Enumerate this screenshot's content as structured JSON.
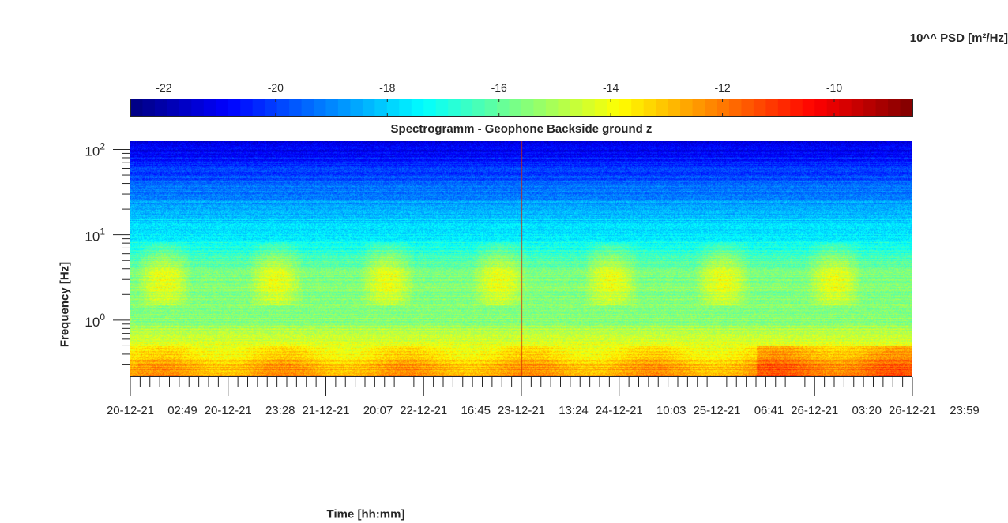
{
  "chart_data": {
    "type": "heatmap",
    "title": "Spectrogramm - Geophone Backside ground z",
    "xlabel": "Time [hh:mm]",
    "ylabel": "Frequency [Hz]",
    "y_scale": "log",
    "y_range": [
      0.22,
      125
    ],
    "y_ticks": [
      {
        "base": "10",
        "exp": "0",
        "value": 1
      },
      {
        "base": "10",
        "exp": "1",
        "value": 10
      },
      {
        "base": "10",
        "exp": "2",
        "value": 100
      }
    ],
    "x_range": [
      "20-12-21 02:49",
      "26-12-21 23:59"
    ],
    "x_ticks": [
      "20-12-21 02:49",
      "20-12-21 23:28",
      "21-12-21 20:07",
      "22-12-21 16:45",
      "23-12-21 13:24",
      "24-12-21 10:03",
      "25-12-21 06:41",
      "26-12-21 03:20",
      "26-12-21 23:59"
    ],
    "colorbar": {
      "label": "10^^ PSD [m²/Hz]",
      "colormap": "jet",
      "range": [
        -22.6,
        -8.6
      ],
      "ticks": [
        "-22",
        "-20",
        "-18",
        "-16",
        "-14",
        "-12",
        "-10"
      ],
      "tick_values": [
        -22,
        -20,
        -18,
        -16,
        -14,
        -12,
        -10
      ]
    },
    "approx_psd_profile": [
      {
        "freq_hz": 100,
        "log10_psd": -21
      },
      {
        "freq_hz": 30,
        "log10_psd": -19
      },
      {
        "freq_hz": 10,
        "log10_psd": -17.5
      },
      {
        "freq_hz": 3,
        "log10_psd": -15.5
      },
      {
        "freq_hz": 1,
        "log10_psd": -15.5
      },
      {
        "freq_hz": 0.5,
        "log10_psd": -14
      },
      {
        "freq_hz": 0.25,
        "log10_psd": -12.5
      }
    ]
  }
}
